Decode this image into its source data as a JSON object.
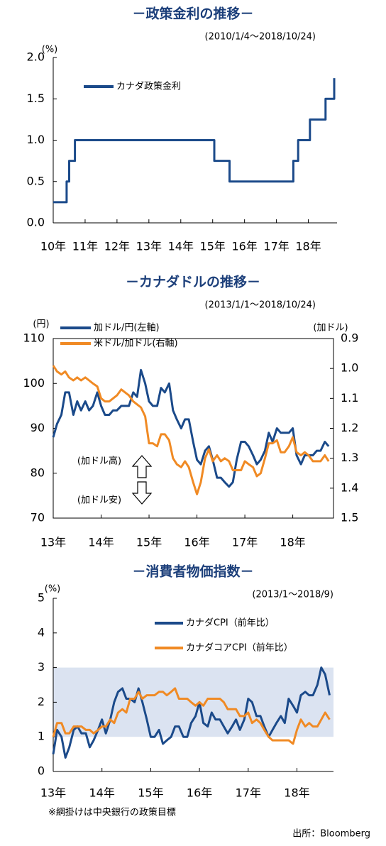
{
  "chart_data": [
    {
      "type": "line",
      "title": "－政策金利の推移－",
      "subtitle": "(2010/1/4～2018/10/24)",
      "y_unit": "(%)",
      "x": [
        2010.0,
        2010.42,
        2010.42,
        2010.5,
        2010.5,
        2010.68,
        2010.68,
        2015.05,
        2015.05,
        2015.53,
        2015.53,
        2017.53,
        2017.53,
        2017.68,
        2017.68,
        2018.05,
        2018.05,
        2018.54,
        2018.54,
        2018.81,
        2018.81
      ],
      "series": [
        {
          "name": "カナダ政策金利",
          "color": "#1b4a8a",
          "values": [
            0.25,
            0.25,
            0.5,
            0.5,
            0.75,
            0.75,
            1,
            1,
            0.75,
            0.75,
            0.5,
            0.5,
            0.75,
            0.75,
            1,
            1,
            1.25,
            1.25,
            1.5,
            1.5,
            1.75
          ]
        }
      ],
      "xlim": [
        2010,
        2018.9
      ],
      "xticks": [
        {
          "value": 2010,
          "label": "10年"
        },
        {
          "value": 2011,
          "label": "11年"
        },
        {
          "value": 2012,
          "label": "12年"
        },
        {
          "value": 2013,
          "label": "13年"
        },
        {
          "value": 2014,
          "label": "14年"
        },
        {
          "value": 2015,
          "label": "15年"
        },
        {
          "value": 2016,
          "label": "16年"
        },
        {
          "value": 2017,
          "label": "17年"
        },
        {
          "value": 2018,
          "label": "18年"
        }
      ],
      "ylim": [
        0,
        2
      ],
      "yticks": [
        {
          "value": 0,
          "label": "0.0"
        },
        0.5,
        {
          "value": 1,
          "label": "1.0"
        },
        1.5,
        {
          "value": 2,
          "label": "2.0"
        }
      ],
      "legend": "upper left",
      "grid": false
    },
    {
      "type": "line",
      "title": "－カナダドルの推移－",
      "subtitle": "(2013/1/1～2018/10/24)",
      "y_unit": "(円)",
      "y2_unit": "(加ドル)",
      "annotations": [
        "(加ドル高)",
        "(加ドル安)"
      ],
      "x": [
        2013.0,
        2013.08,
        2013.17,
        2013.25,
        2013.33,
        2013.42,
        2013.5,
        2013.58,
        2013.67,
        2013.75,
        2013.83,
        2013.92,
        2014.0,
        2014.08,
        2014.17,
        2014.25,
        2014.33,
        2014.42,
        2014.5,
        2014.58,
        2014.67,
        2014.75,
        2014.83,
        2014.92,
        2015.0,
        2015.08,
        2015.17,
        2015.25,
        2015.33,
        2015.42,
        2015.5,
        2015.58,
        2015.67,
        2015.75,
        2015.83,
        2015.92,
        2016.0,
        2016.08,
        2016.17,
        2016.25,
        2016.33,
        2016.42,
        2016.5,
        2016.58,
        2016.67,
        2016.75,
        2016.83,
        2016.92,
        2017.0,
        2017.08,
        2017.17,
        2017.25,
        2017.33,
        2017.42,
        2017.5,
        2017.58,
        2017.67,
        2017.75,
        2017.83,
        2017.92,
        2018.0,
        2018.08,
        2018.17,
        2018.25,
        2018.33,
        2018.42,
        2018.5,
        2018.58,
        2018.67,
        2018.75
      ],
      "series": [
        {
          "name": "加ドル/円(左軸)",
          "color": "#1b4a8a",
          "values": [
            88,
            91,
            93,
            98,
            98,
            93,
            96,
            94,
            96,
            94,
            95,
            98,
            95,
            93,
            93,
            94,
            94,
            95,
            95,
            95,
            98,
            97,
            103,
            100,
            96,
            95,
            95,
            99,
            98,
            100,
            94,
            92,
            90,
            92,
            92,
            87,
            83,
            82,
            85,
            86,
            83,
            79,
            79,
            78,
            77,
            78,
            83,
            87,
            87,
            86,
            84,
            82,
            83,
            85,
            89,
            87,
            90,
            89,
            89,
            89,
            90,
            84,
            82,
            84,
            84,
            84,
            85,
            85,
            87,
            86
          ]
        },
        {
          "name": "米ドル/加ドル(右軸)",
          "color": "#f08a24",
          "axis": "y2",
          "values": [
            0.99,
            1.01,
            1.02,
            1.01,
            1.03,
            1.04,
            1.03,
            1.04,
            1.03,
            1.04,
            1.05,
            1.06,
            1.1,
            1.11,
            1.11,
            1.1,
            1.09,
            1.07,
            1.08,
            1.09,
            1.11,
            1.12,
            1.13,
            1.16,
            1.25,
            1.25,
            1.26,
            1.22,
            1.22,
            1.24,
            1.3,
            1.32,
            1.33,
            1.31,
            1.33,
            1.38,
            1.42,
            1.38,
            1.3,
            1.27,
            1.31,
            1.29,
            1.31,
            1.3,
            1.31,
            1.34,
            1.34,
            1.34,
            1.31,
            1.32,
            1.33,
            1.36,
            1.35,
            1.3,
            1.25,
            1.25,
            1.24,
            1.28,
            1.28,
            1.26,
            1.23,
            1.28,
            1.29,
            1.28,
            1.29,
            1.31,
            1.31,
            1.31,
            1.29,
            1.31
          ]
        }
      ],
      "xlim": [
        2013,
        2018.85
      ],
      "xticks": [
        {
          "value": 2013,
          "label": "13年"
        },
        {
          "value": 2014,
          "label": "14年"
        },
        {
          "value": 2015,
          "label": "15年"
        },
        {
          "value": 2016,
          "label": "16年"
        },
        {
          "value": 2017,
          "label": "17年"
        },
        {
          "value": 2018,
          "label": "18年"
        }
      ],
      "ylim": [
        70,
        110
      ],
      "yticks": [
        70,
        80,
        90,
        100,
        110
      ],
      "y2lim": [
        0.9,
        1.5
      ],
      "y2ticks": [
        0.9,
        {
          "value": 1,
          "label": "1.0"
        },
        1.1,
        1.2,
        1.3,
        1.4,
        1.5
      ],
      "y2_inverted": true,
      "legend": "upper left",
      "grid": false
    },
    {
      "type": "line",
      "title": "－消費者物価指数－",
      "subtitle": "(2013/1～2018/9)",
      "y_unit": "(%)",
      "annotations": [
        "※網掛けは中央銀行の政策目標",
        "出所：Bloomberg"
      ],
      "target_band": [
        1,
        3
      ],
      "x": [
        2013.0,
        2013.08,
        2013.17,
        2013.25,
        2013.33,
        2013.42,
        2013.5,
        2013.58,
        2013.67,
        2013.75,
        2013.83,
        2013.92,
        2014.0,
        2014.08,
        2014.17,
        2014.25,
        2014.33,
        2014.42,
        2014.5,
        2014.58,
        2014.67,
        2014.75,
        2014.83,
        2014.92,
        2015.0,
        2015.08,
        2015.17,
        2015.25,
        2015.33,
        2015.42,
        2015.5,
        2015.58,
        2015.67,
        2015.75,
        2015.83,
        2015.92,
        2016.0,
        2016.08,
        2016.17,
        2016.25,
        2016.33,
        2016.42,
        2016.5,
        2016.58,
        2016.67,
        2016.75,
        2016.83,
        2016.92,
        2017.0,
        2017.08,
        2017.17,
        2017.25,
        2017.33,
        2017.42,
        2017.5,
        2017.58,
        2017.67,
        2017.75,
        2017.83,
        2017.92,
        2018.0,
        2018.08,
        2018.17,
        2018.25,
        2018.33,
        2018.42,
        2018.5,
        2018.58,
        2018.67
      ],
      "series": [
        {
          "name": "カナダCPI（前年比）",
          "color": "#1b4a8a",
          "values": [
            0.5,
            1.2,
            1.0,
            0.4,
            0.7,
            1.2,
            1.3,
            1.1,
            1.1,
            0.7,
            0.9,
            1.2,
            1.5,
            1.1,
            1.5,
            2.0,
            2.3,
            2.4,
            2.1,
            2.1,
            2.0,
            2.4,
            2.0,
            1.5,
            1.0,
            1.0,
            1.2,
            0.8,
            0.9,
            1.0,
            1.3,
            1.3,
            1.0,
            1.0,
            1.4,
            1.6,
            2.0,
            1.4,
            1.3,
            1.7,
            1.5,
            1.5,
            1.3,
            1.1,
            1.3,
            1.5,
            1.2,
            1.5,
            2.1,
            2.0,
            1.6,
            1.6,
            1.3,
            1.0,
            1.2,
            1.4,
            1.6,
            1.4,
            2.1,
            1.9,
            1.7,
            2.2,
            2.3,
            2.2,
            2.2,
            2.5,
            3.0,
            2.8,
            2.2
          ]
        },
        {
          "name": "カナダコアCPI（前年比）",
          "color": "#f08a24",
          "values": [
            1.0,
            1.4,
            1.4,
            1.1,
            1.1,
            1.3,
            1.3,
            1.3,
            1.2,
            1.2,
            1.1,
            1.2,
            1.3,
            1.3,
            1.5,
            1.4,
            1.7,
            1.8,
            1.7,
            2.1,
            2.1,
            2.3,
            2.1,
            2.2,
            2.2,
            2.2,
            2.3,
            2.3,
            2.2,
            2.3,
            2.4,
            2.1,
            2.1,
            2.1,
            2.0,
            1.9,
            2.0,
            1.9,
            2.1,
            2.1,
            2.1,
            2.1,
            2.0,
            1.8,
            1.8,
            1.8,
            1.6,
            1.6,
            1.7,
            1.4,
            1.5,
            1.4,
            1.2,
            1.0,
            0.9,
            0.9,
            0.9,
            0.9,
            0.9,
            0.8,
            1.2,
            1.5,
            1.3,
            1.4,
            1.3,
            1.3,
            1.5,
            1.7,
            1.5
          ]
        }
      ],
      "xlim": [
        2013,
        2018.75
      ],
      "xticks": [
        {
          "value": 2013,
          "label": "13年"
        },
        {
          "value": 2014,
          "label": "14年"
        },
        {
          "value": 2015,
          "label": "15年"
        },
        {
          "value": 2016,
          "label": "16年"
        },
        {
          "value": 2017,
          "label": "17年"
        },
        {
          "value": 2018,
          "label": "18年"
        }
      ],
      "ylim": [
        0,
        5
      ],
      "yticks": [
        0,
        1,
        2,
        3,
        4,
        5
      ],
      "legend": "upper right",
      "grid": false
    }
  ]
}
